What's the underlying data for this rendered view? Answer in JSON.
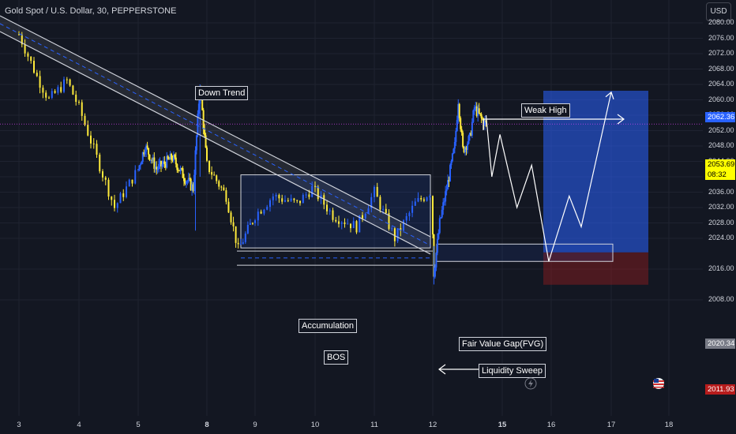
{
  "chart_data": {
    "type": "candlestick",
    "title": "Gold Spot / U.S. Dollar, 30, PEPPERSTONE",
    "currency": "USD",
    "y_ticks": [
      2080.0,
      2076.0,
      2072.0,
      2068.0,
      2064.0,
      2060.0,
      2056.0,
      2052.0,
      2048.0,
      2044.0,
      2040.0,
      2036.0,
      2032.0,
      2028.0,
      2024.0,
      2016.0,
      2008.0
    ],
    "ylim": [
      2007,
      2082
    ],
    "x_ticks": [
      {
        "label": "3",
        "bold": false
      },
      {
        "label": "4",
        "bold": false
      },
      {
        "label": "5",
        "bold": false
      },
      {
        "label": "8",
        "bold": true
      },
      {
        "label": "9",
        "bold": false
      },
      {
        "label": "10",
        "bold": false
      },
      {
        "label": "11",
        "bold": false
      },
      {
        "label": "12",
        "bold": false
      },
      {
        "label": "15",
        "bold": true
      },
      {
        "label": "16",
        "bold": false
      },
      {
        "label": "17",
        "bold": false
      },
      {
        "label": "18",
        "bold": false
      }
    ],
    "price_badges": {
      "target": "2062.36",
      "current": "2053.69",
      "countdown": "08:32",
      "entry": "2020.34",
      "stop": "2011.93"
    },
    "annotations": {
      "down_trend": "Down Trend",
      "weak_high": "Weak High",
      "accumulation": "Accumulation",
      "bos": "BOS",
      "fvg": "Fair Value Gap(FVG)",
      "liquidity_sweep": "Liquidity Sweep"
    },
    "price_path": [
      {
        "day": 3.0,
        "price": 2077
      },
      {
        "day": 3.3,
        "price": 2066
      },
      {
        "day": 3.5,
        "price": 2060
      },
      {
        "day": 3.8,
        "price": 2065
      },
      {
        "day": 4.0,
        "price": 2058
      },
      {
        "day": 4.3,
        "price": 2045
      },
      {
        "day": 4.6,
        "price": 2032
      },
      {
        "day": 5.0,
        "price": 2042
      },
      {
        "day": 5.3,
        "price": 2048
      },
      {
        "day": 5.8,
        "price": 2042
      },
      {
        "day": 6.5,
        "price": 2045
      },
      {
        "day": 7.0,
        "price": 2040
      },
      {
        "day": 7.4,
        "price": 2037
      },
      {
        "day": 7.7,
        "price": 2064
      },
      {
        "day": 8.0,
        "price": 2043
      },
      {
        "day": 8.4,
        "price": 2035
      },
      {
        "day": 8.65,
        "price": 2021
      },
      {
        "day": 9.0,
        "price": 2030
      },
      {
        "day": 9.3,
        "price": 2035
      },
      {
        "day": 9.7,
        "price": 2033
      },
      {
        "day": 9.95,
        "price": 2037
      },
      {
        "day": 10.3,
        "price": 2030
      },
      {
        "day": 10.7,
        "price": 2027
      },
      {
        "day": 11.0,
        "price": 2036
      },
      {
        "day": 11.35,
        "price": 2024
      },
      {
        "day": 11.7,
        "price": 2033
      },
      {
        "day": 11.95,
        "price": 2036
      },
      {
        "day": 12.05,
        "price": 2015
      },
      {
        "day": 12.3,
        "price": 2028
      },
      {
        "day": 12.7,
        "price": 2040
      },
      {
        "day": 12.95,
        "price": 2048
      },
      {
        "day": 13.1,
        "price": 2060
      },
      {
        "day": 13.3,
        "price": 2047
      },
      {
        "day": 13.6,
        "price": 2050
      },
      {
        "day": 13.8,
        "price": 2058
      },
      {
        "day": 14.1,
        "price": 2055
      },
      {
        "day": 14.3,
        "price": 2053.69
      }
    ],
    "projection": [
      {
        "day": 14.3,
        "price": 2056
      },
      {
        "day": 14.55,
        "price": 2040
      },
      {
        "day": 14.9,
        "price": 2051
      },
      {
        "day": 15.3,
        "price": 2032
      },
      {
        "day": 15.6,
        "price": 2043
      },
      {
        "day": 15.95,
        "price": 2018
      },
      {
        "day": 16.3,
        "price": 2035
      },
      {
        "day": 16.5,
        "price": 2027
      },
      {
        "day": 17.0,
        "price": 2062
      }
    ],
    "zones": {
      "target_zone": {
        "from": 2020.34,
        "to": 2062.36
      },
      "stop_zone": {
        "from": 2011.93,
        "to": 2020.34
      },
      "fvg": {
        "from": 2018.0,
        "to": 2022.5
      },
      "accumulation": {
        "from": 2021.5,
        "to": 2040.5
      },
      "bos_level": 2020.7,
      "sweep_level": 2017.0
    },
    "grid": true
  }
}
